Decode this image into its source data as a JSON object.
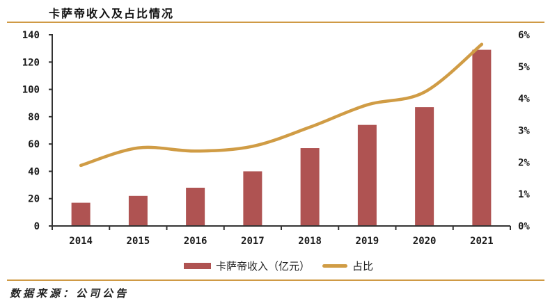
{
  "title": "卡萨帝收入及占比情况",
  "source_note": "数据来源：公司公告",
  "colors": {
    "bar": "#AF5352",
    "line": "#D09C45",
    "rule": "#CF9A45",
    "axis": "#333333",
    "text": "#1A1A1A"
  },
  "legend": {
    "items": [
      {
        "label": "卡萨帝收入（亿元）",
        "marker": "bar"
      },
      {
        "label": "占比",
        "marker": "line"
      }
    ]
  },
  "chart_data": {
    "type": "bar",
    "title": "卡萨帝收入及占比情况",
    "categories": [
      "2014",
      "2015",
      "2016",
      "2017",
      "2018",
      "2019",
      "2020",
      "2021"
    ],
    "series": [
      {
        "name": "卡萨帝收入（亿元）",
        "type": "bar",
        "axis": "left",
        "values": [
          17,
          22,
          28,
          40,
          57,
          74,
          87,
          129
        ]
      },
      {
        "name": "占比",
        "type": "line",
        "axis": "right",
        "values": [
          1.9,
          2.45,
          2.35,
          2.5,
          3.1,
          3.8,
          4.2,
          5.7
        ]
      }
    ],
    "left_axis": {
      "min": 0,
      "max": 140,
      "step": 20,
      "tick_labels": [
        "0",
        "20",
        "40",
        "60",
        "80",
        "100",
        "120",
        "140"
      ]
    },
    "right_axis": {
      "min": 0,
      "max": 6,
      "step": 1,
      "tick_labels": [
        "0%",
        "1%",
        "2%",
        "3%",
        "4%",
        "5%",
        "6%"
      ]
    },
    "grid": false,
    "legend_position": "bottom"
  }
}
